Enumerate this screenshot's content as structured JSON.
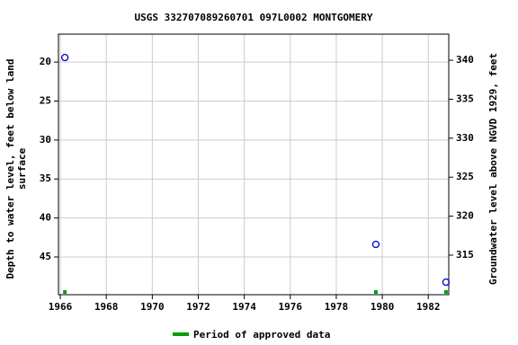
{
  "chart_data": {
    "type": "scatter",
    "title": "USGS 332707089260701 097L0002  MONTGOMERY",
    "ylabel": [
      "Depth to water level, feet below land",
      "surface"
    ],
    "y2label": "Groundwater level above NGVD 1929, feet",
    "x": [
      1966.2,
      1979.72,
      1982.77
    ],
    "series": [
      {
        "name": "Depth to water level",
        "color": "#0000cc",
        "values": [
          19.42,
          43.39,
          48.23
        ]
      }
    ],
    "approved": {
      "name": "Period of approved data",
      "color": "#00a000",
      "x": [
        1966.2,
        1979.72,
        1982.77
      ]
    },
    "xlim": [
      1965.92,
      1982.89
    ],
    "xticks": [
      1966,
      1968,
      1970,
      1972,
      1974,
      1976,
      1978,
      1980,
      1982
    ],
    "ylim": [
      16.42,
      49.84
    ],
    "yticks": [
      20,
      25,
      30,
      35,
      40,
      45
    ],
    "y2lim": [
      343.35,
      309.93
    ],
    "y2ticks": [
      315,
      320,
      325,
      330,
      335,
      340
    ],
    "grid": true
  }
}
